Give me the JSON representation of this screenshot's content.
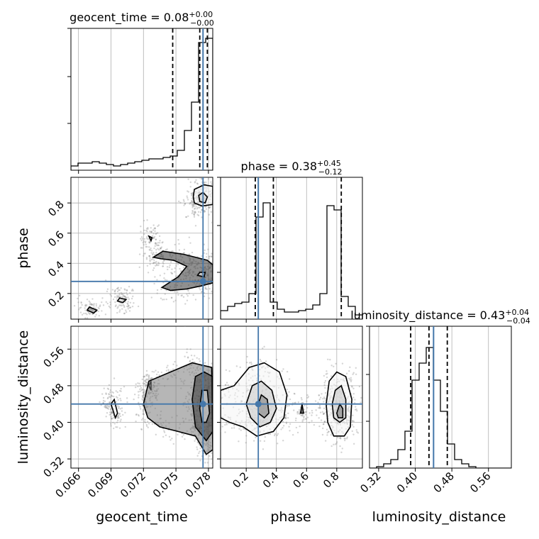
{
  "chart_data": [
    {
      "type": "histogram",
      "panel": "geocent_time-1d",
      "title": {
        "base": "geocent_time = 0.08",
        "sup": "+0.00",
        "sub": "−0.00"
      },
      "x_ticks": [
        0.066,
        0.069,
        0.072,
        0.075,
        0.078
      ],
      "xlim": [
        0.0653,
        0.0784
      ],
      "bins_start": 0.0653,
      "bin_width": 0.000655,
      "counts": [
        3,
        5,
        5,
        6,
        5,
        4,
        3,
        4,
        5,
        6,
        7,
        8,
        8,
        9,
        10,
        14,
        28,
        48,
        90,
        93
      ],
      "ymax": 100,
      "quantiles": [
        0.0747,
        0.0772,
        0.0779
      ],
      "truth": 0.0775
    },
    {
      "type": "histogram",
      "panel": "phase-1d",
      "title": {
        "base": "phase = 0.38",
        "sup": "+0.45",
        "sub": "−0.12"
      },
      "x_ticks": [
        0.2,
        0.4,
        0.6,
        0.8
      ],
      "xlim": [
        0.03,
        0.97
      ],
      "bins_start": 0.03,
      "bin_width": 0.047,
      "counts": [
        6,
        9,
        11,
        12,
        18,
        72,
        82,
        12,
        7,
        5,
        5,
        6,
        7,
        10,
        18,
        80,
        77,
        16,
        9,
        3
      ],
      "ymax": 100,
      "quantiles": [
        0.26,
        0.38,
        0.83
      ],
      "truth": 0.28
    },
    {
      "type": "histogram",
      "panel": "luminosity_distance-1d",
      "title": {
        "base": "luminosity_distance = 0.43",
        "sup": "+0.04",
        "sub": "−0.04"
      },
      "x_ticks": [
        0.32,
        0.4,
        0.48,
        0.56
      ],
      "tick_labels": [
        "0.32",
        "0.40",
        "0.48",
        "0.56"
      ],
      "xlim": [
        0.3,
        0.61
      ],
      "bins_start": 0.3,
      "bin_width": 0.0155,
      "counts": [
        0,
        1,
        3,
        6,
        13,
        26,
        62,
        74,
        85,
        62,
        40,
        17,
        6,
        3,
        1,
        0,
        0,
        0,
        0,
        0
      ],
      "ymax": 100,
      "quantiles": [
        0.39,
        0.43,
        0.47
      ],
      "truth": 0.44
    },
    {
      "type": "contour",
      "panel": "geocent_time-vs-phase",
      "xlim": [
        0.0653,
        0.0784
      ],
      "ylim": [
        0.03,
        0.97
      ],
      "y_ticks": [
        0.2,
        0.4,
        0.6,
        0.8
      ],
      "truth": [
        0.0775,
        0.28
      ],
      "contours": [
        [
          [
            0.0767,
            0.8
          ],
          [
            0.0774,
            0.78
          ],
          [
            0.0784,
            0.79
          ],
          [
            0.0784,
            0.91
          ],
          [
            0.0776,
            0.92
          ],
          [
            0.0767,
            0.89
          ],
          [
            0.0766,
            0.84
          ],
          [
            0.0767,
            0.8
          ]
        ],
        [
          [
            0.0772,
            0.81
          ],
          [
            0.0777,
            0.8
          ],
          [
            0.0779,
            0.84
          ],
          [
            0.0775,
            0.87
          ],
          [
            0.0771,
            0.85
          ],
          [
            0.0772,
            0.81
          ]
        ],
        [
          [
            0.0725,
            0.58
          ],
          [
            0.0727,
            0.55
          ],
          [
            0.0728,
            0.57
          ],
          [
            0.0725,
            0.58
          ]
        ],
        [
          [
            0.0729,
            0.44
          ],
          [
            0.0738,
            0.48
          ],
          [
            0.0757,
            0.46
          ],
          [
            0.0779,
            0.42
          ],
          [
            0.0784,
            0.39
          ],
          [
            0.0784,
            0.27
          ],
          [
            0.0773,
            0.25
          ],
          [
            0.076,
            0.23
          ],
          [
            0.0745,
            0.22
          ],
          [
            0.0737,
            0.24
          ],
          [
            0.0752,
            0.31
          ],
          [
            0.076,
            0.38
          ],
          [
            0.0748,
            0.42
          ],
          [
            0.0736,
            0.43
          ],
          [
            0.0729,
            0.44
          ]
        ],
        [
          [
            0.077,
            0.32
          ],
          [
            0.0776,
            0.31
          ],
          [
            0.0777,
            0.34
          ],
          [
            0.0772,
            0.34
          ],
          [
            0.077,
            0.32
          ]
        ],
        [
          [
            0.0696,
            0.15
          ],
          [
            0.0701,
            0.14
          ],
          [
            0.0704,
            0.16
          ],
          [
            0.0698,
            0.17
          ],
          [
            0.0696,
            0.15
          ]
        ],
        [
          [
            0.0668,
            0.09
          ],
          [
            0.0674,
            0.07
          ],
          [
            0.0677,
            0.09
          ],
          [
            0.067,
            0.11
          ],
          [
            0.0668,
            0.09
          ]
        ]
      ]
    },
    {
      "type": "contour",
      "panel": "geocent_time-vs-luminosity_distance",
      "xlim": [
        0.0653,
        0.0784
      ],
      "ylim": [
        0.3,
        0.61
      ],
      "y_ticks": [
        0.32,
        0.4,
        0.48,
        0.56
      ],
      "truth": [
        0.0775,
        0.44
      ],
      "contours": [
        [
          [
            0.069,
            0.44
          ],
          [
            0.0694,
            0.41
          ],
          [
            0.0696,
            0.42
          ],
          [
            0.0693,
            0.45
          ],
          [
            0.069,
            0.44
          ]
        ],
        [
          [
            0.0725,
            0.48
          ],
          [
            0.0727,
            0.47
          ],
          [
            0.0727,
            0.49
          ],
          [
            0.0725,
            0.48
          ]
        ],
        [
          [
            0.072,
            0.44
          ],
          [
            0.0725,
            0.49
          ],
          [
            0.0745,
            0.51
          ],
          [
            0.0765,
            0.53
          ],
          [
            0.0783,
            0.52
          ],
          [
            0.0784,
            0.34
          ],
          [
            0.0778,
            0.33
          ],
          [
            0.0768,
            0.37
          ],
          [
            0.0752,
            0.38
          ],
          [
            0.0735,
            0.39
          ],
          [
            0.0724,
            0.41
          ],
          [
            0.072,
            0.44
          ]
        ],
        [
          [
            0.0765,
            0.45
          ],
          [
            0.0768,
            0.5
          ],
          [
            0.0776,
            0.51
          ],
          [
            0.0784,
            0.5
          ],
          [
            0.0784,
            0.38
          ],
          [
            0.0778,
            0.36
          ],
          [
            0.0768,
            0.39
          ],
          [
            0.0765,
            0.45
          ]
        ],
        [
          [
            0.0772,
            0.43
          ],
          [
            0.0774,
            0.47
          ],
          [
            0.0779,
            0.47
          ],
          [
            0.0781,
            0.42
          ],
          [
            0.0778,
            0.4
          ],
          [
            0.0774,
            0.4
          ],
          [
            0.0772,
            0.43
          ]
        ]
      ]
    },
    {
      "type": "contour",
      "panel": "phase-vs-luminosity_distance",
      "xlim": [
        0.03,
        0.97
      ],
      "ylim": [
        0.3,
        0.61
      ],
      "y_ticks": [
        0.32,
        0.4,
        0.48,
        0.56
      ],
      "truth": [
        0.28,
        0.44
      ],
      "contours": [
        [
          [
            0.03,
            0.47
          ],
          [
            0.12,
            0.48
          ],
          [
            0.22,
            0.52
          ],
          [
            0.32,
            0.53
          ],
          [
            0.42,
            0.51
          ],
          [
            0.47,
            0.46
          ],
          [
            0.45,
            0.41
          ],
          [
            0.38,
            0.38
          ],
          [
            0.27,
            0.37
          ],
          [
            0.18,
            0.39
          ],
          [
            0.09,
            0.4
          ],
          [
            0.03,
            0.41
          ],
          [
            0.03,
            0.47
          ]
        ],
        [
          [
            0.2,
            0.44
          ],
          [
            0.24,
            0.48
          ],
          [
            0.3,
            0.49
          ],
          [
            0.37,
            0.47
          ],
          [
            0.4,
            0.43
          ],
          [
            0.36,
            0.4
          ],
          [
            0.29,
            0.39
          ],
          [
            0.23,
            0.41
          ],
          [
            0.2,
            0.44
          ]
        ],
        [
          [
            0.28,
            0.44
          ],
          [
            0.3,
            0.46
          ],
          [
            0.34,
            0.45
          ],
          [
            0.35,
            0.42
          ],
          [
            0.32,
            0.41
          ],
          [
            0.28,
            0.42
          ],
          [
            0.28,
            0.44
          ]
        ],
        [
          [
            0.56,
            0.42
          ],
          [
            0.57,
            0.44
          ],
          [
            0.58,
            0.42
          ],
          [
            0.56,
            0.42
          ]
        ],
        [
          [
            0.73,
            0.44
          ],
          [
            0.75,
            0.49
          ],
          [
            0.8,
            0.51
          ],
          [
            0.86,
            0.5
          ],
          [
            0.9,
            0.45
          ],
          [
            0.89,
            0.39
          ],
          [
            0.85,
            0.37
          ],
          [
            0.78,
            0.37
          ],
          [
            0.74,
            0.4
          ],
          [
            0.73,
            0.44
          ]
        ],
        [
          [
            0.77,
            0.44
          ],
          [
            0.79,
            0.47
          ],
          [
            0.83,
            0.48
          ],
          [
            0.86,
            0.45
          ],
          [
            0.86,
            0.41
          ],
          [
            0.82,
            0.4
          ],
          [
            0.78,
            0.41
          ],
          [
            0.77,
            0.44
          ]
        ],
        [
          [
            0.8,
            0.42
          ],
          [
            0.82,
            0.44
          ],
          [
            0.84,
            0.43
          ],
          [
            0.84,
            0.41
          ],
          [
            0.81,
            0.41
          ],
          [
            0.8,
            0.42
          ]
        ]
      ]
    }
  ],
  "labels": {
    "geocent_time": "geocent_time",
    "phase": "phase",
    "luminosity_distance": "luminosity_distance"
  },
  "colors": {
    "truth": "#4477aa",
    "hist": "#000000",
    "grid": "#b0b0b0",
    "scatter": "#888888"
  }
}
